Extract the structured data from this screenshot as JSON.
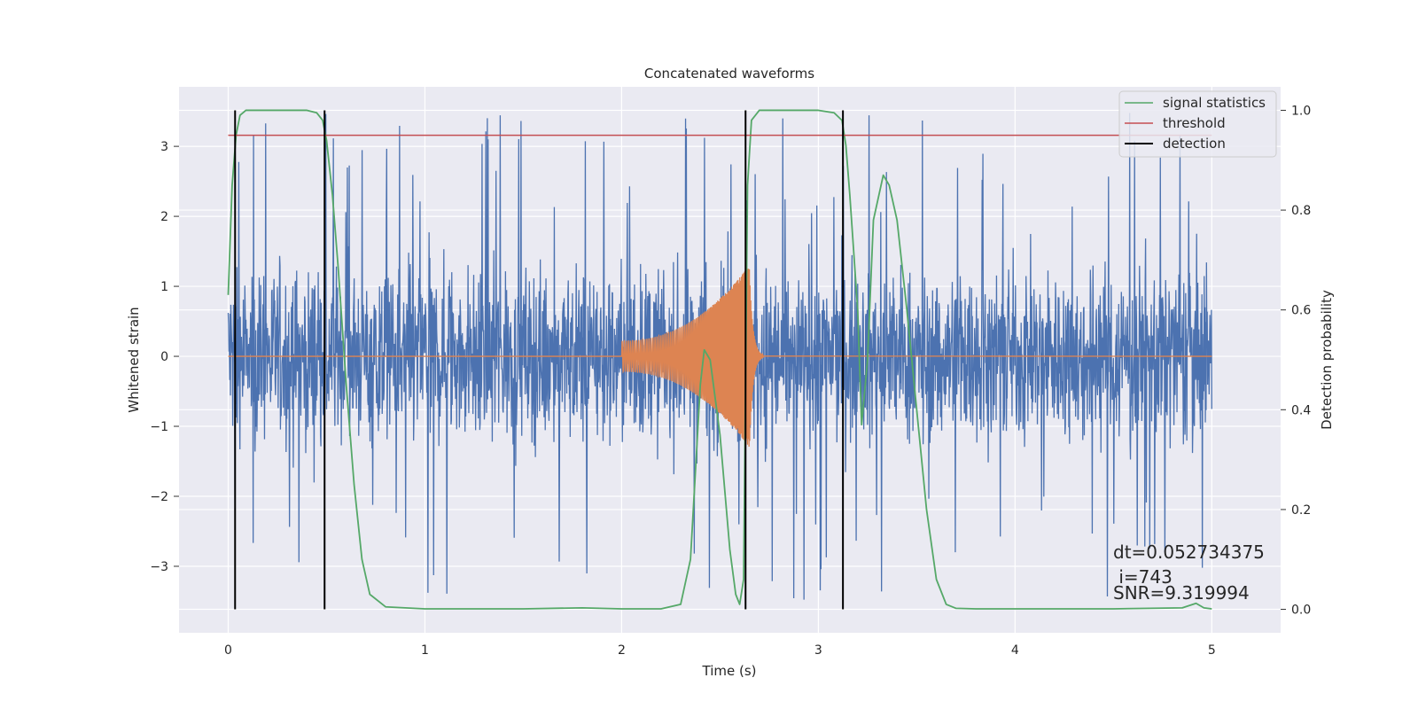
{
  "chart_data": {
    "type": "line",
    "title": "Concatenated waveforms",
    "xlabel": "Time (s)",
    "ylabel_left": "Whitened strain",
    "ylabel_right": "Detection probability",
    "xlim": [
      -0.25,
      5.35
    ],
    "ylim_left": [
      -3.95,
      3.85
    ],
    "ylim_right": [
      -0.047,
      1.047
    ],
    "x_ticks": [
      0,
      1,
      2,
      3,
      4,
      5
    ],
    "y_ticks_left": [
      -3,
      -2,
      -1,
      0,
      1,
      2,
      3
    ],
    "y_ticks_right": [
      0.0,
      0.2,
      0.4,
      0.6,
      0.8,
      1.0
    ],
    "grid": true,
    "legend_position": "top-right",
    "legend": [
      "signal statistics",
      "threshold",
      "detection"
    ],
    "colors": {
      "strain": "#4c72b0",
      "template": "#dd8452",
      "signal_statistics": "#55a868",
      "threshold": "#c44e52",
      "detection": "#000000",
      "axes_bg": "#eaeaf2",
      "grid": "#ffffff"
    },
    "series": [
      {
        "name": "signal statistics",
        "axis": "right",
        "x": [
          0.0,
          0.02,
          0.04,
          0.06,
          0.09,
          0.12,
          0.2,
          0.3,
          0.4,
          0.45,
          0.48,
          0.5,
          0.53,
          0.56,
          0.6,
          0.64,
          0.68,
          0.72,
          0.8,
          1.0,
          1.5,
          1.8,
          2.0,
          2.2,
          2.3,
          2.35,
          2.4,
          2.42,
          2.45,
          2.5,
          2.55,
          2.58,
          2.6,
          2.62,
          2.64,
          2.66,
          2.7,
          2.8,
          3.0,
          3.08,
          3.12,
          3.14,
          3.16,
          3.2,
          3.22,
          3.25,
          3.28,
          3.33,
          3.36,
          3.4,
          3.45,
          3.5,
          3.55,
          3.6,
          3.65,
          3.7,
          3.8,
          4.0,
          4.5,
          4.85,
          4.92,
          4.96,
          5.0
        ],
        "values": [
          0.63,
          0.85,
          0.95,
          0.99,
          1.0,
          1.0,
          1.0,
          1.0,
          1.0,
          0.995,
          0.98,
          0.94,
          0.83,
          0.68,
          0.45,
          0.25,
          0.1,
          0.03,
          0.005,
          0.001,
          0.001,
          0.003,
          0.001,
          0.001,
          0.01,
          0.1,
          0.45,
          0.52,
          0.5,
          0.35,
          0.12,
          0.03,
          0.01,
          0.06,
          0.85,
          0.98,
          1.0,
          1.0,
          1.0,
          0.995,
          0.98,
          0.93,
          0.83,
          0.6,
          0.37,
          0.5,
          0.78,
          0.87,
          0.85,
          0.78,
          0.6,
          0.4,
          0.2,
          0.06,
          0.01,
          0.002,
          0.001,
          0.001,
          0.001,
          0.003,
          0.012,
          0.003,
          0.001
        ]
      },
      {
        "name": "threshold",
        "axis": "right",
        "x": [
          0.0,
          5.0
        ],
        "values": [
          0.95,
          0.95
        ]
      },
      {
        "name": "detection",
        "axis": "right",
        "vertical_lines_x": [
          0.035,
          0.49,
          2.63,
          3.125
        ],
        "span": [
          0.0,
          1.0
        ]
      }
    ],
    "strain_noise": {
      "axis": "left",
      "x_range": [
        0,
        5
      ],
      "typical_amplitude": 1.0,
      "peak_extremes": [
        -3.6,
        3.5
      ]
    },
    "template_waveform": {
      "axis": "left",
      "x_range": [
        0,
        5
      ],
      "chirp_start": 2.0,
      "merger": 2.65,
      "amplitude_start": 0.22,
      "amplitude_merger": 1.3,
      "ringdown_end": 2.72
    },
    "annotations": [
      "dt=0.052734375",
      " i=743",
      "SNR=9.319994"
    ]
  }
}
